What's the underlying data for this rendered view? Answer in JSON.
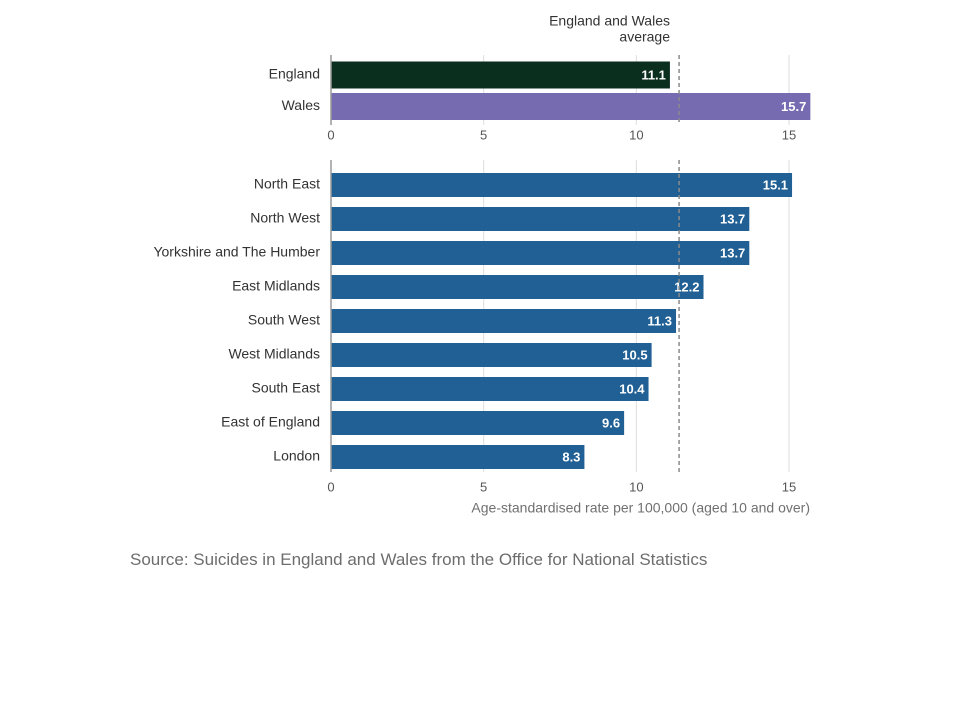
{
  "chart_data": [
    {
      "type": "bar",
      "orientation": "horizontal",
      "categories": [
        "England",
        "Wales"
      ],
      "values": [
        11.1,
        15.7
      ],
      "colors": [
        "#0b2f1e",
        "#766bb0"
      ],
      "xlim": [
        0,
        16
      ],
      "xticks": [
        0,
        5,
        10,
        15
      ],
      "reference_line": {
        "value": 11.4,
        "label_lines": [
          "England and Wales",
          "average"
        ],
        "style": "dashed"
      },
      "grid": true
    },
    {
      "type": "bar",
      "orientation": "horizontal",
      "categories": [
        "North East",
        "North West",
        "Yorkshire and The Humber",
        "East Midlands",
        "South West",
        "West Midlands",
        "South East",
        "East of England",
        "London"
      ],
      "values": [
        15.1,
        13.7,
        13.7,
        12.2,
        11.3,
        10.5,
        10.4,
        9.6,
        8.3
      ],
      "color": "#206095",
      "xlim": [
        0,
        16
      ],
      "xticks": [
        0,
        5,
        10,
        15
      ],
      "xlabel": "Age-standardised rate per 100,000 (aged 10 and over)",
      "reference_line": {
        "value": 11.4,
        "style": "dashed"
      },
      "grid": true
    }
  ],
  "source": "Source: Suicides in England and Wales from the Office for National Statistics"
}
